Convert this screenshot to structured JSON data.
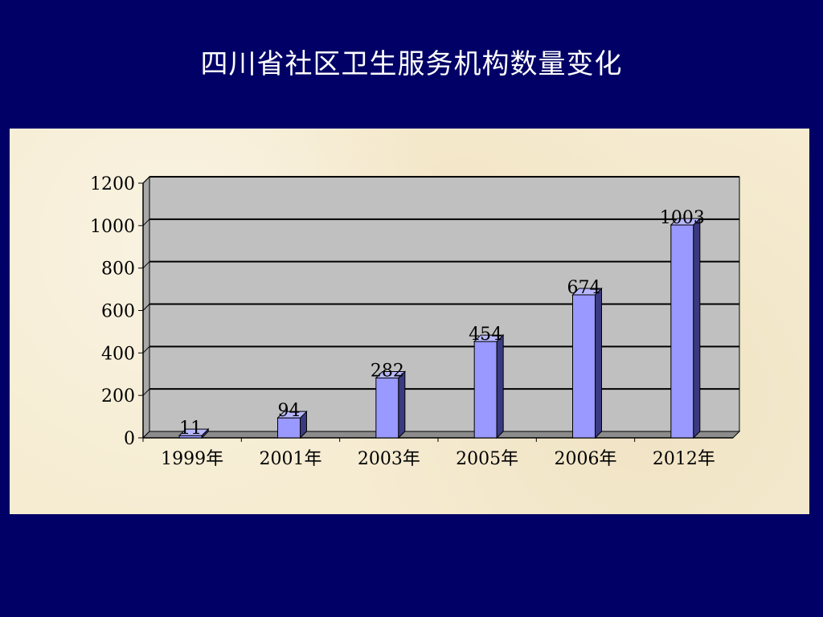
{
  "slide": {
    "title": "四川省社区卫生服务机构数量变化",
    "background_color": "#000066",
    "panel_color": "#f6ecd2"
  },
  "chart_data": {
    "type": "bar",
    "title": "",
    "xlabel": "",
    "ylabel": "",
    "categories": [
      "1999年",
      "2001年",
      "2003年",
      "2005年",
      "2006年",
      "2012年"
    ],
    "values": [
      11,
      94,
      282,
      454,
      674,
      1003
    ],
    "data_labels": [
      "11",
      "94",
      "282",
      "454",
      "674",
      "1003"
    ],
    "ylim": [
      0,
      1200
    ],
    "yticks": [
      0,
      200,
      400,
      600,
      800,
      1000,
      1200
    ],
    "ytick_labels": [
      "0",
      "200",
      "400",
      "600",
      "800",
      "1000",
      "1200"
    ],
    "grid": true,
    "style": "3d-column",
    "bar_color": "#9999ff",
    "bar_side_color": "#3a3a80",
    "plot_background": "#c0c0c0",
    "legend": "none"
  }
}
